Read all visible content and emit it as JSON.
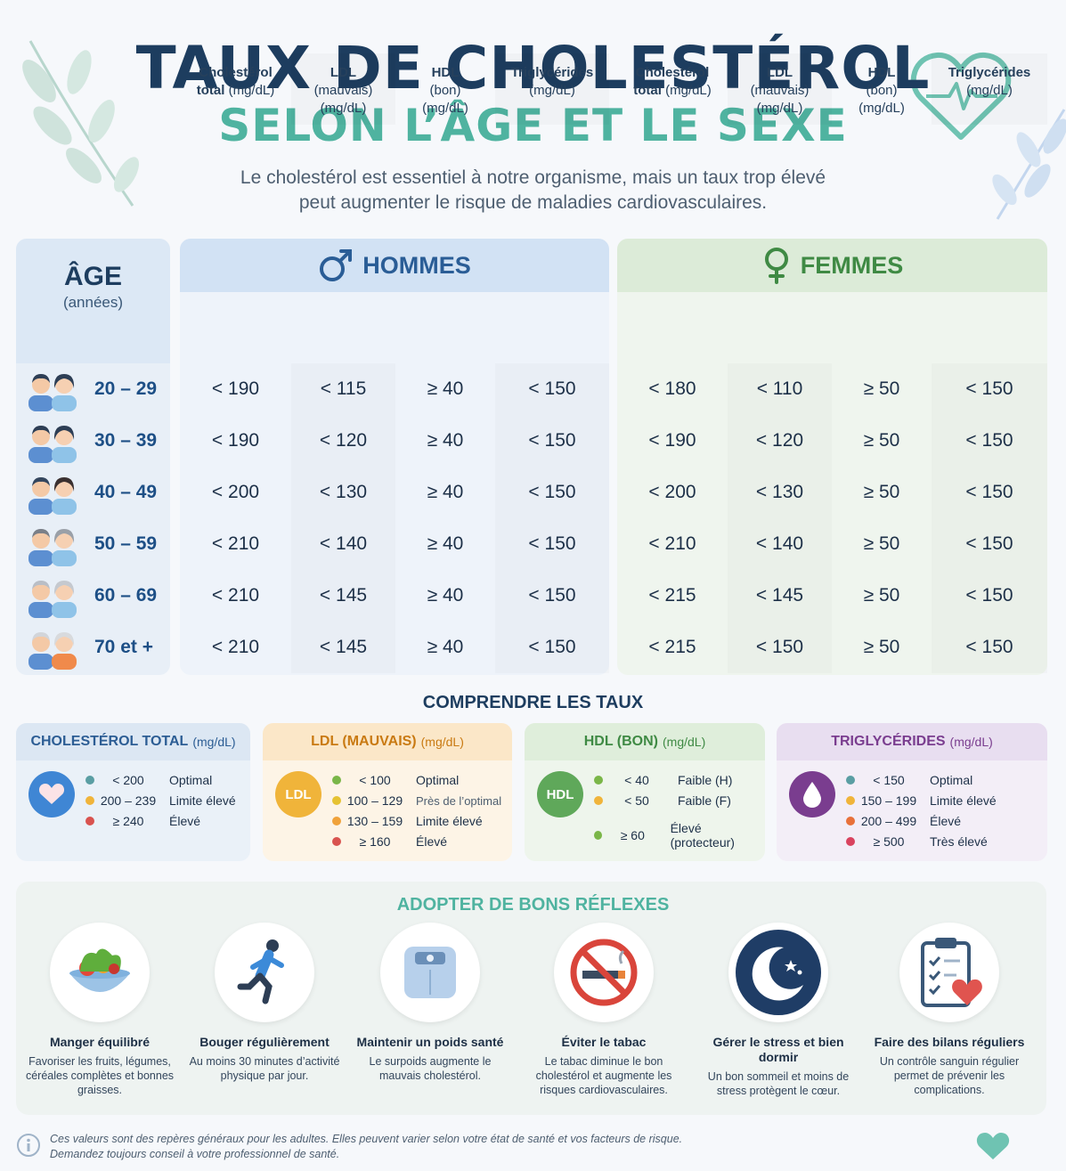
{
  "header": {
    "title": "TAUX DE CHOLESTÉROL",
    "subtitle": "SELON L’ÂGE ET LE SEXE",
    "intro_line1": "Le cholestérol est essentiel à notre organisme, mais un taux trop élevé",
    "intro_line2": "peut augmenter le risque de maladies cardiovasculaires."
  },
  "table": {
    "age_title": "ÂGE",
    "age_sub": "(années)",
    "men_title": "HOMMES",
    "women_title": "FEMMES",
    "columns": [
      {
        "l1": "Cholestérol",
        "l2": "total",
        "l2b": " (mg/dL)",
        "l3": ""
      },
      {
        "l1": "LDL",
        "l2": "(mauvais)",
        "l2b": "",
        "l3": "(mg/dL)"
      },
      {
        "l1": "HDL",
        "l2": "(bon)",
        "l2b": "",
        "l3": "(mg/dL)"
      },
      {
        "l1": "Triglycérides",
        "l2": "(mg/dL)",
        "l2b": "",
        "l3": ""
      }
    ],
    "rows": [
      {
        "age": "20 – 29",
        "men": [
          "< 190",
          "< 115",
          "≥ 40",
          "< 150"
        ],
        "women": [
          "< 180",
          "< 110",
          "≥ 50",
          "< 150"
        ]
      },
      {
        "age": "30 – 39",
        "men": [
          "< 190",
          "< 120",
          "≥ 40",
          "< 150"
        ],
        "women": [
          "< 190",
          "< 120",
          "≥ 50",
          "< 150"
        ]
      },
      {
        "age": "40 – 49",
        "men": [
          "< 200",
          "< 130",
          "≥ 40",
          "< 150"
        ],
        "women": [
          "< 200",
          "< 130",
          "≥ 50",
          "< 150"
        ]
      },
      {
        "age": "50 – 59",
        "men": [
          "< 210",
          "< 140",
          "≥ 40",
          "< 150"
        ],
        "women": [
          "< 210",
          "< 140",
          "≥ 50",
          "< 150"
        ]
      },
      {
        "age": "60 – 69",
        "men": [
          "< 210",
          "< 145",
          "≥ 40",
          "< 150"
        ],
        "women": [
          "< 215",
          "< 145",
          "≥ 50",
          "< 150"
        ]
      },
      {
        "age": "70 et +",
        "men": [
          "< 210",
          "< 145",
          "≥ 40",
          "< 150"
        ],
        "women": [
          "< 215",
          "< 150",
          "≥ 50",
          "< 150"
        ]
      }
    ]
  },
  "comprendre": {
    "title": "COMPRENDRE LES TAUX",
    "cards": [
      {
        "title": "CHOLESTÉROL TOTAL",
        "unit": "(mg/dL)",
        "badge": "",
        "color": "#2c5d94",
        "items": [
          {
            "dot": "#5a9ea3",
            "range": "< 200",
            "desc": "Optimal"
          },
          {
            "dot": "#f0b43a",
            "range": "200 – 239",
            "desc": "Limite élevé"
          },
          {
            "dot": "#d9534f",
            "range": "≥ 240",
            "desc": "Élevé"
          }
        ]
      },
      {
        "title": "LDL (MAUVAIS)",
        "unit": "(mg/dL)",
        "badge": "LDL",
        "color": "#c97a12",
        "items": [
          {
            "dot": "#7ab648",
            "range": "< 100",
            "desc": "Optimal"
          },
          {
            "dot": "#e6c232",
            "range": "100 – 129",
            "desc": "Près de l’optimal"
          },
          {
            "dot": "#f0a23a",
            "range": "130 – 159",
            "desc": "Limite élevé"
          },
          {
            "dot": "#d9534f",
            "range": "≥ 160",
            "desc": "Élevé"
          }
        ]
      },
      {
        "title": "HDL (BON)",
        "unit": "(mg/dL)",
        "badge": "HDL",
        "color": "#3f8a44",
        "items": [
          {
            "dot": "#7ab648",
            "range": "< 40",
            "desc": "Faible (H)"
          },
          {
            "dot": "#f0b43a",
            "range": "< 50",
            "desc": "Faible (F)"
          },
          {
            "dot": "#7ab648",
            "range": "≥ 60",
            "desc": "Élevé (protecteur)"
          }
        ]
      },
      {
        "title": "TRIGLYCÉRIDES",
        "unit": "(mg/dL)",
        "badge": "",
        "color": "#7a3d8f",
        "items": [
          {
            "dot": "#5a9ea3",
            "range": "< 150",
            "desc": "Optimal"
          },
          {
            "dot": "#f0b43a",
            "range": "150 – 199",
            "desc": "Limite élevé"
          },
          {
            "dot": "#e8713a",
            "range": "200 – 499",
            "desc": "Élevé"
          },
          {
            "dot": "#d9435f",
            "range": "≥ 500",
            "desc": "Très élevé"
          }
        ]
      }
    ]
  },
  "reflexes": {
    "title": "ADOPTER DE BONS RÉFLEXES",
    "tips": [
      {
        "title": "Manger équilibré",
        "desc": "Favoriser les fruits, légumes, céréales complètes et bonnes graisses.",
        "icon": "salad-bowl-icon"
      },
      {
        "title": "Bouger régulièrement",
        "desc": "Au moins 30 minutes d’activité physique par jour.",
        "icon": "runner-icon"
      },
      {
        "title": "Maintenir un poids santé",
        "desc": "Le surpoids augmente le mauvais cholestérol.",
        "icon": "scale-icon"
      },
      {
        "title": "Éviter le tabac",
        "desc": "Le tabac diminue le bon cholestérol et augmente les risques cardiovasculaires.",
        "icon": "no-smoking-icon"
      },
      {
        "title": "Gérer le stress et bien dormir",
        "desc": "Un bon sommeil et moins de stress protègent le cœur.",
        "icon": "moon-icon"
      },
      {
        "title": "Faire des bilans réguliers",
        "desc": "Un contrôle sanguin régulier permet de prévenir les complications.",
        "icon": "clipboard-heart-icon"
      }
    ]
  },
  "footer": {
    "line1": "Ces valeurs sont des repères généraux pour les adultes. Elles peuvent varier selon votre état de santé et vos facteurs de risque.",
    "line2": "Demandez toujours conseil à votre professionnel de santé."
  }
}
